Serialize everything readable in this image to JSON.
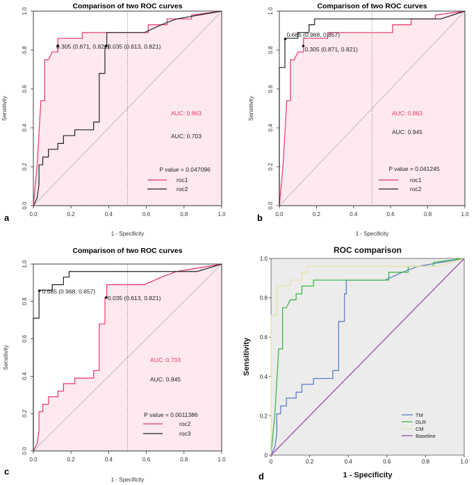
{
  "chart_data": [
    {
      "panel_label": "a",
      "type": "line",
      "title": "Comparison of two ROC curves",
      "xlabel": "1 - Specificity",
      "ylabel": "Sensitivity",
      "xlim": [
        0,
        1
      ],
      "ylim": [
        0,
        1
      ],
      "xticks": [
        "0.0",
        "0.2",
        "0.4",
        "0.6",
        "0.8",
        "1.0"
      ],
      "yticks": [
        "0.0",
        "0.2",
        "0.4",
        "0.6",
        "0.8",
        "1.0"
      ],
      "series": [
        {
          "name": "roc1",
          "color": "#e8336b",
          "x": [
            0,
            0.02,
            0.04,
            0.06,
            0.06,
            0.08,
            0.1,
            0.13,
            0.13,
            0.26,
            0.26,
            0.39,
            0.39,
            0.61,
            0.61,
            0.71,
            0.71,
            0.79,
            0.79,
            0.84,
            0.84,
            1.0
          ],
          "y": [
            0,
            0.21,
            0.54,
            0.54,
            0.75,
            0.75,
            0.79,
            0.79,
            0.86,
            0.86,
            0.89,
            0.89,
            0.89,
            0.89,
            0.93,
            0.93,
            0.96,
            0.96,
            0.96,
            0.96,
            0.98,
            1.0
          ]
        },
        {
          "name": "roc2",
          "color": "#222222",
          "x": [
            0,
            0.02,
            0.03,
            0.03,
            0.05,
            0.05,
            0.08,
            0.08,
            0.1,
            0.1,
            0.13,
            0.13,
            0.16,
            0.16,
            0.22,
            0.22,
            0.32,
            0.32,
            0.35,
            0.35,
            0.38,
            0.38,
            0.39,
            0.39,
            0.45,
            0.59,
            0.68,
            0.76,
            0.88,
            1.0
          ],
          "y": [
            0,
            0.04,
            0.11,
            0.21,
            0.21,
            0.25,
            0.25,
            0.29,
            0.29,
            0.29,
            0.29,
            0.32,
            0.32,
            0.36,
            0.36,
            0.39,
            0.39,
            0.43,
            0.43,
            0.68,
            0.68,
            0.82,
            0.82,
            0.89,
            0.89,
            0.89,
            0.93,
            0.96,
            0.98,
            1.0
          ]
        }
      ],
      "cutoff_points": [
        {
          "label": "0.305 (0.871, 0.821)",
          "x": 0.129,
          "y": 0.821
        },
        {
          "label": "0.035 (0.613, 0.821)",
          "x": 0.387,
          "y": 0.821
        }
      ],
      "annotations": [
        {
          "text": "AUC: 0.863",
          "color": "#e8336b"
        },
        {
          "text": "AUC: 0.703",
          "color": "#222222"
        },
        {
          "text": "P value = 0.047096",
          "color": "#222222"
        }
      ]
    },
    {
      "panel_label": "b",
      "type": "line",
      "title": "Comparison of two ROC curves",
      "xlabel": "1 - Specificity",
      "ylabel": "Sensitivity",
      "xlim": [
        0,
        1
      ],
      "ylim": [
        0,
        1
      ],
      "xticks": [
        "0.0",
        "0.2",
        "0.4",
        "0.6",
        "0.8",
        "1.0"
      ],
      "yticks": [
        "0.0",
        "0.2",
        "0.4",
        "0.6",
        "0.8",
        "1.0"
      ],
      "series": [
        {
          "name": "roc1",
          "color": "#e8336b",
          "x": [
            0,
            0.02,
            0.04,
            0.06,
            0.06,
            0.08,
            0.1,
            0.13,
            0.13,
            0.26,
            0.26,
            0.39,
            0.39,
            0.61,
            0.61,
            0.71,
            0.71,
            0.79,
            0.79,
            0.84,
            0.84,
            1.0
          ],
          "y": [
            0,
            0.21,
            0.54,
            0.54,
            0.75,
            0.75,
            0.79,
            0.79,
            0.86,
            0.86,
            0.89,
            0.89,
            0.89,
            0.89,
            0.93,
            0.93,
            0.96,
            0.96,
            0.96,
            0.96,
            0.98,
            1.0
          ]
        },
        {
          "name": "roc2",
          "color": "#222222",
          "x": [
            0,
            0,
            0.03,
            0.03,
            0.1,
            0.1,
            0.16,
            0.16,
            0.19,
            0.19,
            0.23,
            0.23,
            0.87,
            0.87,
            1.0
          ],
          "y": [
            0,
            0.71,
            0.71,
            0.86,
            0.86,
            0.89,
            0.89,
            0.93,
            0.93,
            0.96,
            0.96,
            0.96,
            0.96,
            0.96,
            1.0
          ]
        }
      ],
      "cutoff_points": [
        {
          "label": "0.685 (0.968, 0.857)",
          "x": 0.032,
          "y": 0.857
        },
        {
          "label": "0.305 (0.871, 0.821)",
          "x": 0.129,
          "y": 0.821
        }
      ],
      "annotations": [
        {
          "text": "AUC: 0.863",
          "color": "#e8336b"
        },
        {
          "text": "AUC: 0.945",
          "color": "#222222"
        },
        {
          "text": "P value = 0.041245",
          "color": "#222222"
        }
      ]
    },
    {
      "panel_label": "c",
      "type": "line",
      "title": "Comparison of two ROC curves",
      "xlabel": "1 - Specificity",
      "ylabel": "Sensitivity",
      "xlim": [
        0,
        1
      ],
      "ylim": [
        0,
        1
      ],
      "xticks": [
        "0.0",
        "0.2",
        "0.4",
        "0.6",
        "0.8",
        "1.0"
      ],
      "yticks": [
        "0.0",
        "0.2",
        "0.4",
        "0.6",
        "0.8",
        "1.0"
      ],
      "series": [
        {
          "name": "roc2",
          "color": "#e8336b",
          "x": [
            0,
            0.02,
            0.03,
            0.03,
            0.05,
            0.05,
            0.08,
            0.08,
            0.1,
            0.1,
            0.13,
            0.13,
            0.16,
            0.16,
            0.22,
            0.22,
            0.32,
            0.32,
            0.35,
            0.35,
            0.38,
            0.38,
            0.39,
            0.39,
            0.45,
            0.59,
            0.68,
            0.76,
            0.88,
            1.0
          ],
          "y": [
            0,
            0.04,
            0.11,
            0.21,
            0.21,
            0.25,
            0.25,
            0.29,
            0.29,
            0.29,
            0.29,
            0.32,
            0.32,
            0.36,
            0.36,
            0.39,
            0.39,
            0.43,
            0.43,
            0.68,
            0.68,
            0.82,
            0.82,
            0.89,
            0.89,
            0.89,
            0.93,
            0.96,
            0.98,
            1.0
          ]
        },
        {
          "name": "roc3",
          "color": "#222222",
          "x": [
            0,
            0,
            0.03,
            0.03,
            0.1,
            0.1,
            0.16,
            0.16,
            0.19,
            0.19,
            0.23,
            0.23,
            0.87,
            0.87,
            1.0
          ],
          "y": [
            0,
            0.71,
            0.71,
            0.86,
            0.86,
            0.89,
            0.89,
            0.93,
            0.93,
            0.96,
            0.96,
            0.96,
            0.96,
            0.96,
            1.0
          ]
        }
      ],
      "cutoff_points": [
        {
          "label": "0.685 (0.968, 0.857)",
          "x": 0.032,
          "y": 0.857
        },
        {
          "label": "0.035 (0.613, 0.821)",
          "x": 0.387,
          "y": 0.821
        }
      ],
      "annotations": [
        {
          "text": "AUC: 0.703",
          "color": "#e8336b"
        },
        {
          "text": "AUC: 0.945",
          "color": "#222222"
        },
        {
          "text": "P value = 0.0011386",
          "color": "#222222"
        }
      ]
    },
    {
      "panel_label": "d",
      "type": "line",
      "title": "ROC comparison",
      "xlabel": "1 - Specificity",
      "ylabel": "Sensitivity",
      "xlim": [
        0,
        1
      ],
      "ylim": [
        0,
        1
      ],
      "xticks": [
        "0",
        "0.2",
        "0.4",
        "0.6",
        "0.8",
        "1.0"
      ],
      "yticks": [
        "0",
        "0.2",
        "0.4",
        "0.6",
        "0.8",
        "1.0"
      ],
      "series": [
        {
          "name": "TM",
          "color": "#5b7fc7",
          "x": [
            0,
            0.02,
            0.03,
            0.03,
            0.05,
            0.05,
            0.08,
            0.08,
            0.1,
            0.1,
            0.13,
            0.13,
            0.16,
            0.16,
            0.22,
            0.22,
            0.32,
            0.32,
            0.35,
            0.35,
            0.38,
            0.38,
            0.39,
            0.39,
            0.45,
            0.59,
            0.68,
            0.76,
            0.88,
            1.0
          ],
          "y": [
            0,
            0.04,
            0.11,
            0.21,
            0.21,
            0.25,
            0.25,
            0.29,
            0.29,
            0.29,
            0.29,
            0.32,
            0.32,
            0.36,
            0.36,
            0.39,
            0.39,
            0.43,
            0.43,
            0.68,
            0.68,
            0.82,
            0.82,
            0.89,
            0.89,
            0.89,
            0.93,
            0.96,
            0.98,
            1.0
          ]
        },
        {
          "name": "DLR",
          "color": "#3cb84a",
          "x": [
            0,
            0.02,
            0.04,
            0.06,
            0.06,
            0.08,
            0.1,
            0.13,
            0.13,
            0.16,
            0.16,
            0.22,
            0.22,
            0.61,
            0.61,
            0.71,
            0.71,
            0.84,
            0.84,
            1.0
          ],
          "y": [
            0,
            0.21,
            0.54,
            0.54,
            0.75,
            0.75,
            0.79,
            0.79,
            0.82,
            0.82,
            0.86,
            0.86,
            0.89,
            0.89,
            0.93,
            0.93,
            0.96,
            0.96,
            0.98,
            1.0
          ]
        },
        {
          "name": "CM",
          "color": "#e6dfa6",
          "x": [
            0,
            0,
            0.03,
            0.03,
            0.1,
            0.1,
            0.16,
            0.16,
            0.19,
            0.19,
            0.23,
            0.23,
            0.87,
            0.87,
            1.0
          ],
          "y": [
            0,
            0.71,
            0.71,
            0.86,
            0.86,
            0.89,
            0.89,
            0.93,
            0.93,
            0.96,
            0.96,
            0.96,
            0.96,
            0.96,
            1.0
          ]
        },
        {
          "name": "Baseline",
          "color": "#9b4ab3",
          "x": [
            0,
            1.0
          ],
          "y": [
            0,
            1.0
          ]
        }
      ],
      "cutoff_points": [],
      "annotations": []
    }
  ]
}
